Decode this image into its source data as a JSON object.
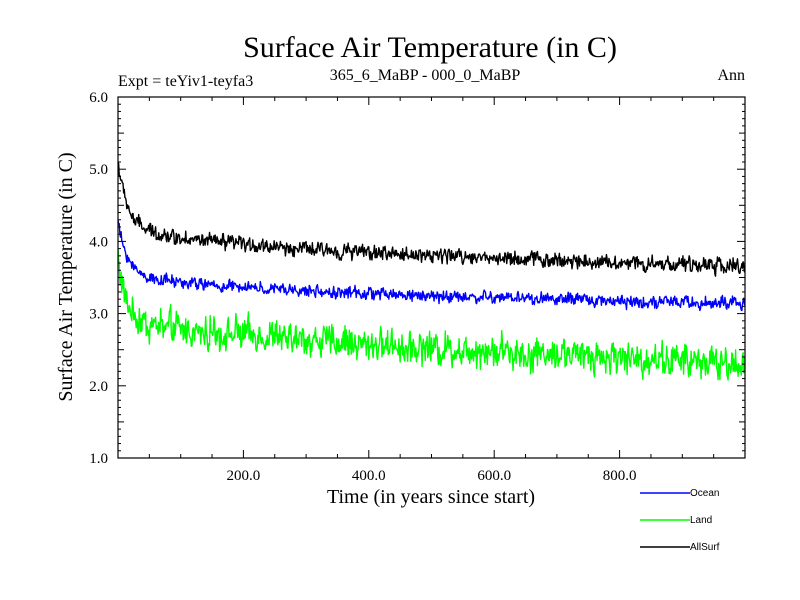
{
  "chart_data": {
    "type": "line",
    "title": "Surface Air Temperature (in C)",
    "subtitle_left": "Expt = teYiv1-teyfa3",
    "subtitle_center": "365_6_MaBP - 000_0_MaBP",
    "subtitle_right": "Ann",
    "xlabel": "Time (in years since start)",
    "ylabel": "Surface Air Temperature (in C)",
    "xlim": [
      0,
      1000
    ],
    "ylim": [
      1.0,
      6.0
    ],
    "x_major_ticks": [
      200,
      400,
      600,
      800
    ],
    "x_tick_labels": [
      "200.0",
      "400.0",
      "600.0",
      "800.0"
    ],
    "y_major_ticks": [
      1.0,
      2.0,
      3.0,
      4.0,
      5.0,
      6.0
    ],
    "y_tick_labels": [
      "1.0",
      "2.0",
      "3.0",
      "4.0",
      "5.0",
      "6.0"
    ],
    "x_step": 1,
    "series": [
      {
        "name": "AllSurf",
        "color": "#000000",
        "start": 5.1,
        "equilibrium": 3.95,
        "early_decay_amplitude": 0.9,
        "early_decay_years": 15,
        "slow_decay_amplitude": 0.25,
        "slow_decay_years": 150,
        "trend_per_1000yr": -0.3,
        "noise_amplitude": 0.11
      },
      {
        "name": "Ocean",
        "color": "#0000ff",
        "start": 4.3,
        "equilibrium": 3.35,
        "early_decay_amplitude": 0.7,
        "early_decay_years": 15,
        "slow_decay_amplitude": 0.2,
        "slow_decay_years": 150,
        "trend_per_1000yr": -0.22,
        "noise_amplitude": 0.09
      },
      {
        "name": "Land",
        "color": "#00ff00",
        "start": 3.9,
        "equilibrium": 2.75,
        "early_decay_amplitude": 0.9,
        "early_decay_years": 12,
        "slow_decay_amplitude": 0.15,
        "slow_decay_years": 150,
        "trend_per_1000yr": -0.45,
        "noise_amplitude": 0.24
      }
    ],
    "legend": [
      {
        "label": "Ocean",
        "color": "#0000ff"
      },
      {
        "label": "Land",
        "color": "#00ff00"
      },
      {
        "label": "AllSurf",
        "color": "#000000"
      }
    ],
    "legend_position": "bottom-right"
  }
}
